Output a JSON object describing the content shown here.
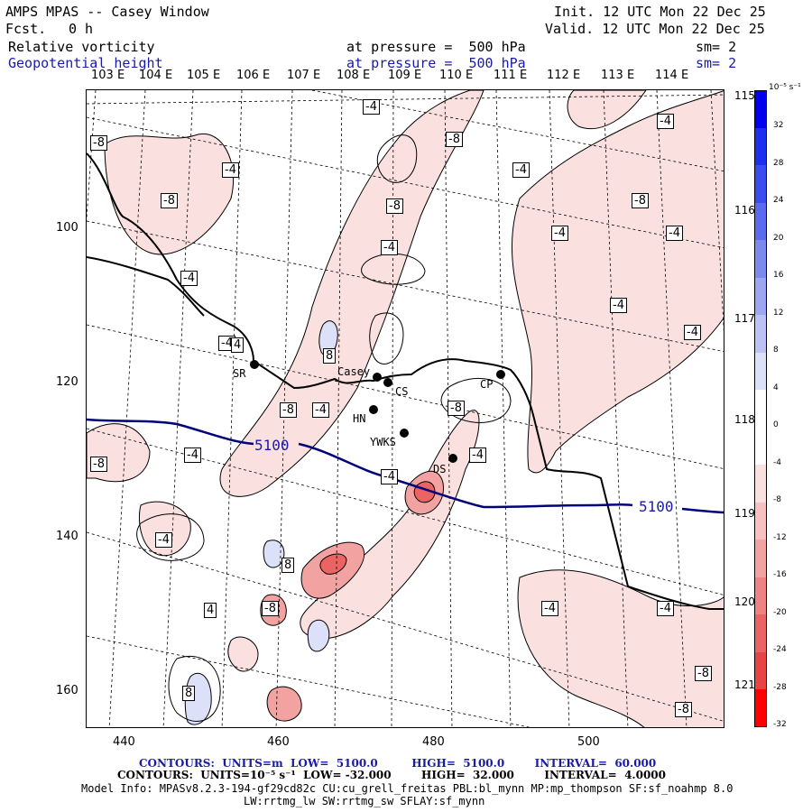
{
  "header": {
    "title": "AMPS MPAS -- Casey Window",
    "fcst_label": "Fcst.",
    "fcst_value": "0 h",
    "init": "Init. 12 UTC Mon 22 Dec 25",
    "valid": "Valid. 12 UTC Mon 22 Dec 25",
    "field1_name": "Relative vorticity",
    "field1_level": "at pressure =  500 hPa",
    "field1_sm": "sm= 2",
    "field2_name": "Geopotential height",
    "field2_level": "at pressure =  500 hPa",
    "field2_sm": "sm= 2"
  },
  "top_lon_labels": [
    "103 E",
    "104 E",
    "105 E",
    "106 E",
    "107 E",
    "108 E",
    "109 E",
    "110 E",
    "111 E",
    "112 E",
    "113 E",
    "114 E"
  ],
  "right_lon_labels": [
    "115 E",
    "116 E",
    "117 E",
    "118 E",
    "119 E",
    "120 E",
    "121 E"
  ],
  "x_axis_ticks": [
    "440",
    "460",
    "480",
    "500"
  ],
  "y_axis_ticks": [
    "100",
    "120",
    "140",
    "160"
  ],
  "stations": [
    {
      "name": "SR"
    },
    {
      "name": "Casey"
    },
    {
      "name": "CS"
    },
    {
      "name": "CP"
    },
    {
      "name": "HN"
    },
    {
      "name": "YWKS"
    },
    {
      "name": "DS"
    }
  ],
  "height_contour_labels": [
    "5100",
    "5100"
  ],
  "vorticity_labels": [
    "-4",
    "-8",
    "-4",
    "-8",
    "-4",
    "-8",
    "-4",
    "-8",
    "-4",
    "-4",
    "-4",
    "-8",
    "-4",
    "-4",
    "8",
    "-4",
    "-8",
    "-4",
    "-4",
    "-8",
    "-8",
    "-4",
    "-4",
    "-4",
    "8",
    "-8",
    "-4",
    "-4",
    "-8",
    "-8",
    "8",
    "4",
    "-4",
    "4"
  ],
  "colorbar": {
    "units": "10⁻⁵ s⁻¹",
    "labels": [
      "32",
      "28",
      "24",
      "20",
      "16",
      "12",
      "8",
      "4",
      "0",
      "-4",
      "-8",
      "-12",
      "-16",
      "-20",
      "-24",
      "-28",
      "-32"
    ],
    "colors": [
      "#0000ee",
      "#1c2fee",
      "#3a4dee",
      "#5b6bee",
      "#7c89ef",
      "#9ca6f1",
      "#bcc3f4",
      "#dde0f9",
      "#ffffff",
      "#ffffff",
      "#fbe0e0",
      "#f7c1c1",
      "#f3a2a2",
      "#ef8383",
      "#eb6464",
      "#e74545",
      "#ff0000"
    ]
  },
  "footer": {
    "contours1": "CONTOURS:  UNITS=m  LOW=  5100.0         HIGH=  5100.0        INTERVAL=  60.000",
    "contours2": "CONTOURS:  UNITS=10⁻⁵ s⁻¹  LOW= -32.000        HIGH=  32.000        INTERVAL=  4.0000",
    "model_info": "Model Info: MPASv8.2.3-194-gf29cd82c CU:cu_grell_freitas PBL:bl_mynn MP:mp_thompson SF:sf_noahmp 8.0",
    "model_info2": "LW:rrtmg_lw SW:rrtmg_sw SFLAY:sf_mynn"
  }
}
